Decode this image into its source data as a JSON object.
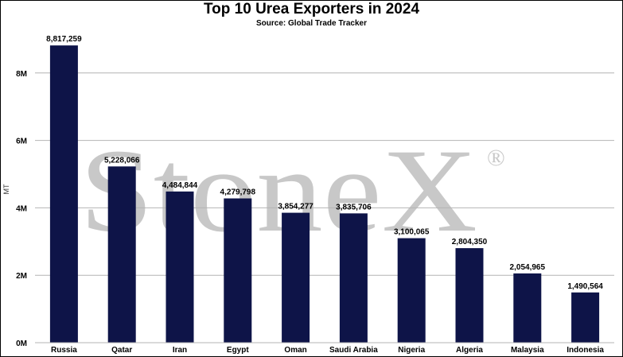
{
  "chart_data": {
    "type": "bar",
    "title": "Top 10 Urea Exporters in 2024",
    "subtitle": "Source: Global Trade Tracker",
    "xlabel": "",
    "ylabel": "MT",
    "categories": [
      "Russia",
      "Qatar",
      "Iran",
      "Egypt",
      "Oman",
      "Saudi Arabia",
      "Nigeria",
      "Algeria",
      "Malaysia",
      "Indonesia"
    ],
    "values": [
      8817259,
      5228066,
      4484844,
      4279798,
      3854277,
      3835706,
      3100065,
      2804350,
      2054965,
      1490564
    ],
    "value_labels": [
      "8,817,259",
      "5,228,066",
      "4,484,844",
      "4,279,798",
      "3,854,277",
      "3,835,706",
      "3,100,065",
      "2,804,350",
      "2,054,965",
      "1,490,564"
    ],
    "ylim": [
      0,
      9500000
    ],
    "yticks": [
      0,
      2000000,
      4000000,
      6000000,
      8000000
    ],
    "ytick_labels": [
      "0M",
      "2M",
      "4M",
      "6M",
      "8M"
    ],
    "grid": true,
    "legend": "none",
    "bar_color": "#0e1448"
  },
  "watermark": {
    "text": "StoneX",
    "mark": "®",
    "color": "#c8c8c8"
  }
}
